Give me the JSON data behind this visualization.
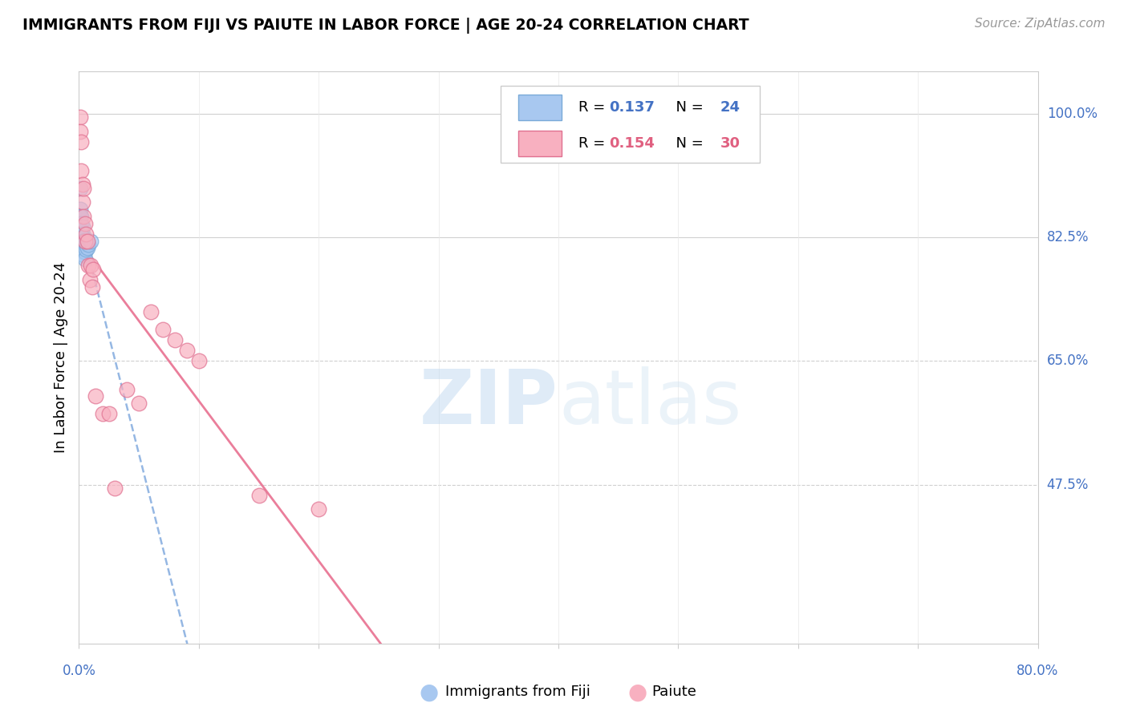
{
  "title": "IMMIGRANTS FROM FIJI VS PAIUTE IN LABOR FORCE | AGE 20-24 CORRELATION CHART",
  "source": "Source: ZipAtlas.com",
  "ylabel": "In Labor Force | Age 20-24",
  "xlim": [
    0.0,
    0.8
  ],
  "ylim": [
    0.25,
    1.06
  ],
  "ytick_vals": [
    1.0,
    0.825,
    0.65,
    0.475
  ],
  "ytick_labels": [
    "100.0%",
    "82.5%",
    "65.0%",
    "47.5%"
  ],
  "fiji_R": 0.137,
  "fiji_N": 24,
  "paiute_R": 0.154,
  "paiute_N": 30,
  "fiji_color": "#a8c8f0",
  "fiji_edge_color": "#7aaad8",
  "paiute_color": "#f8b0c0",
  "paiute_edge_color": "#e07090",
  "fiji_line_color": "#8ab0e0",
  "paiute_line_color": "#e87090",
  "watermark_color": "#cce0f5",
  "fiji_x": [
    0.001,
    0.001,
    0.001,
    0.002,
    0.002,
    0.002,
    0.003,
    0.003,
    0.003,
    0.003,
    0.003,
    0.004,
    0.004,
    0.004,
    0.004,
    0.004,
    0.005,
    0.005,
    0.005,
    0.006,
    0.006,
    0.007,
    0.008,
    0.01
  ],
  "fiji_y": [
    0.895,
    0.865,
    0.855,
    0.855,
    0.845,
    0.835,
    0.84,
    0.83,
    0.825,
    0.82,
    0.815,
    0.82,
    0.815,
    0.81,
    0.805,
    0.8,
    0.815,
    0.805,
    0.795,
    0.815,
    0.808,
    0.81,
    0.815,
    0.82
  ],
  "paiute_x": [
    0.001,
    0.001,
    0.002,
    0.002,
    0.003,
    0.003,
    0.004,
    0.004,
    0.005,
    0.005,
    0.006,
    0.007,
    0.008,
    0.009,
    0.01,
    0.011,
    0.012,
    0.014,
    0.02,
    0.025,
    0.03,
    0.04,
    0.05,
    0.06,
    0.07,
    0.08,
    0.09,
    0.1,
    0.15,
    0.2
  ],
  "paiute_y": [
    0.995,
    0.975,
    0.96,
    0.92,
    0.9,
    0.875,
    0.895,
    0.855,
    0.845,
    0.82,
    0.83,
    0.82,
    0.785,
    0.765,
    0.785,
    0.755,
    0.78,
    0.6,
    0.575,
    0.575,
    0.47,
    0.61,
    0.59,
    0.72,
    0.695,
    0.68,
    0.665,
    0.65,
    0.46,
    0.44
  ]
}
